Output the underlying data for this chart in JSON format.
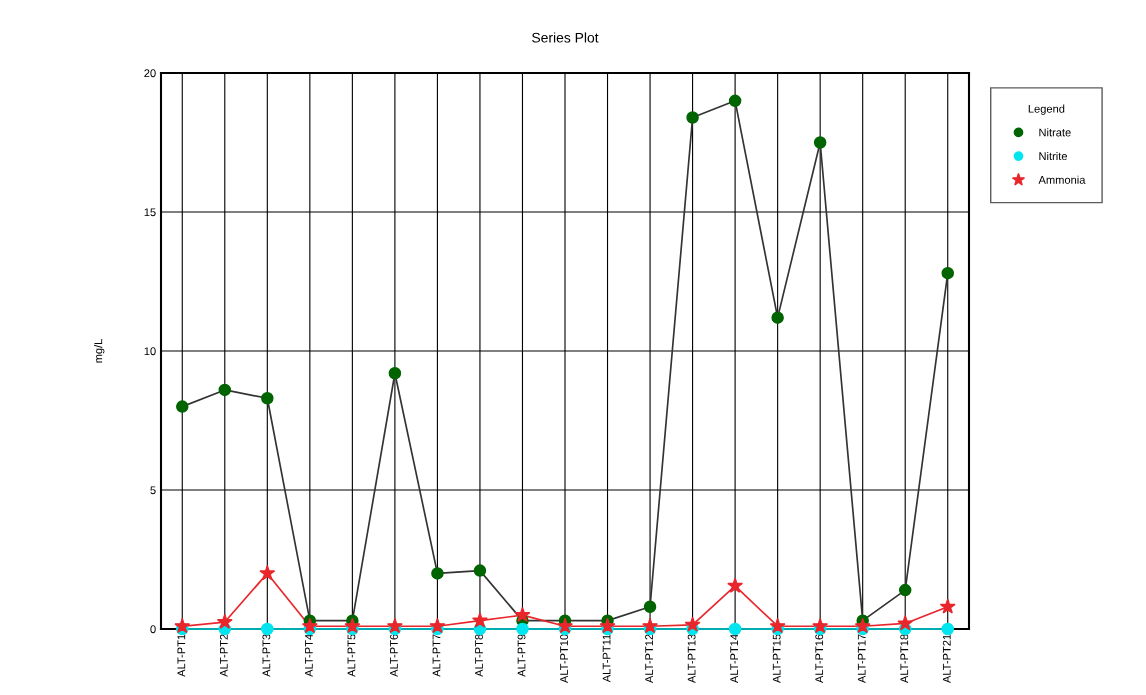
{
  "chart_data": {
    "type": "line",
    "title": "Series Plot",
    "ylabel": "mg/L",
    "legend_title": "Legend",
    "categories": [
      "ALT-PT1",
      "ALT-PT2",
      "ALT-PT3",
      "ALT-PT4",
      "ALT-PT5",
      "ALT-PT6",
      "ALT-PT7",
      "ALT-PT8",
      "ALT-PT9",
      "ALT-PT10",
      "ALT-PT11",
      "ALT-PT12",
      "ALT-PT13",
      "ALT-PT14",
      "ALT-PT15",
      "ALT-PT16",
      "ALT-PT17",
      "ALT-PT18",
      "ALT-PT21"
    ],
    "series": [
      {
        "name": "Nitrate",
        "color": "#006400",
        "marker": "circle",
        "values": [
          8.0,
          8.6,
          8.3,
          0.3,
          0.3,
          9.2,
          2.0,
          2.1,
          0.3,
          0.3,
          0.3,
          0.8,
          18.4,
          19.0,
          11.2,
          17.5,
          0.3,
          1.4,
          12.8
        ]
      },
      {
        "name": "Nitrite",
        "color": "#00e5ee",
        "marker": "circle",
        "values": [
          0,
          0,
          0,
          0,
          0,
          0,
          0,
          0,
          0,
          0,
          0,
          0,
          0,
          0,
          0,
          0,
          0,
          0,
          0
        ]
      },
      {
        "name": "Ammonia",
        "color": "#e8262b",
        "marker": "star",
        "values": [
          0.1,
          0.25,
          2.0,
          0.1,
          0.1,
          0.1,
          0.1,
          0.3,
          0.5,
          0.1,
          0.1,
          0.1,
          0.15,
          1.55,
          0.1,
          0.1,
          0.1,
          0.2,
          0.8
        ]
      }
    ],
    "ylim": [
      0,
      20
    ],
    "yticks": [
      0,
      5,
      10,
      15,
      20
    ],
    "grid": true,
    "legend": "right"
  }
}
